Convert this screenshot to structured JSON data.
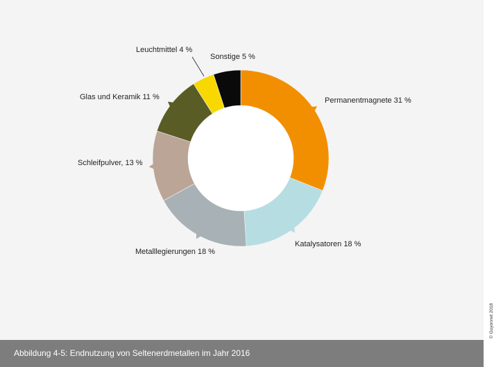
{
  "caption": "Abbildung 4-5: Endnutzung von Seltenerdmetallen im Jahr 2016",
  "copyright": "© Guyonnet 2018",
  "chart_data": {
    "type": "pie",
    "variant": "donut",
    "title": "",
    "unit": "%",
    "slices": [
      {
        "label": "Permanentmagnete 31 %",
        "name": "Permanentmagnete",
        "value": 31,
        "color": "#f28f00"
      },
      {
        "label": "Katalysatoren 18 %",
        "name": "Katalysatoren",
        "value": 18,
        "color": "#b6dde2"
      },
      {
        "label": "Metalllegierungen 18 %",
        "name": "Metalllegierungen",
        "value": 18,
        "color": "#a8b2b6"
      },
      {
        "label": "Schleifpulver, 13 %",
        "name": "Schleifpulver",
        "value": 13,
        "color": "#bba597"
      },
      {
        "label": "Glas und Keramik 11 %",
        "name": "Glas und Keramik",
        "value": 11,
        "color": "#5a5c25"
      },
      {
        "label": "Leuchtmittel 4 %",
        "name": "Leuchtmittel",
        "value": 4,
        "color": "#f7d800"
      },
      {
        "label": "Sonstige 5 %",
        "name": "Sonstige",
        "value": 5,
        "color": "#0a0a0a"
      }
    ]
  }
}
